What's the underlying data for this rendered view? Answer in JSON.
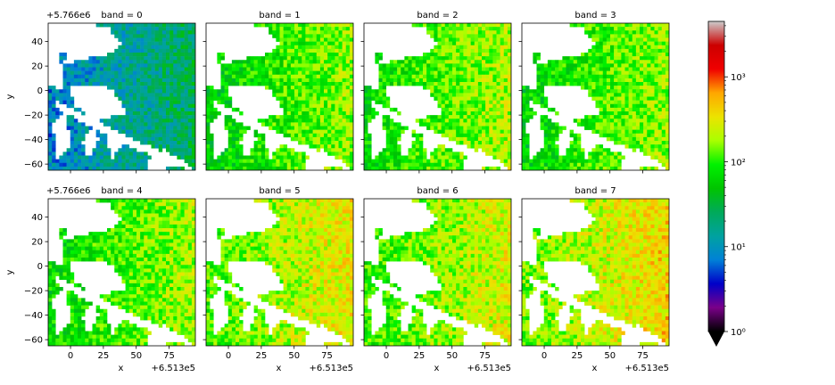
{
  "chart_data": {
    "type": "heatmap",
    "layout": "facet-grid",
    "facet_variable": "band",
    "facet_title_sep": " = ",
    "panels": [
      {
        "band": 0,
        "title": "band = 0",
        "mean_level": 14
      },
      {
        "band": 1,
        "title": "band = 1",
        "mean_level": 95
      },
      {
        "band": 2,
        "title": "band = 2",
        "mean_level": 115
      },
      {
        "band": 3,
        "title": "band = 3",
        "mean_level": 100
      },
      {
        "band": 4,
        "title": "band = 4",
        "mean_level": 110
      },
      {
        "band": 5,
        "title": "band = 5",
        "mean_level": 190
      },
      {
        "band": 6,
        "title": "band = 6",
        "mean_level": 160
      },
      {
        "band": 7,
        "title": "band = 7",
        "mean_level": 230
      }
    ],
    "xlabel": "x",
    "ylabel": "y",
    "x_offset_label": "+6.513e5",
    "y_offset_label": "+5.766e6",
    "x_ticks": [
      0,
      25,
      50,
      75
    ],
    "y_ticks": [
      40,
      20,
      0,
      -20,
      -40,
      -60
    ],
    "y_tick_labels": [
      "40",
      "20",
      "0",
      "−20",
      "−40",
      "−60"
    ],
    "x_tick_labels": [
      "0",
      "25",
      "50",
      "75"
    ],
    "xlim": [
      -17,
      95
    ],
    "ylim": [
      -65,
      55
    ],
    "colorbar": {
      "scale": "log",
      "vmin": 1,
      "vmax": 4500,
      "ticks": [
        1,
        10,
        100,
        1000
      ],
      "tick_labels": [
        "10⁰",
        "10¹",
        "10²",
        "10³"
      ],
      "colormap": "nipy_spectral",
      "extend": "min",
      "color_stops": [
        "#000000",
        "#7a0089",
        "#0000c8",
        "#0081d7",
        "#00a2a0",
        "#00aa5a",
        "#00c400",
        "#00f200",
        "#a9ff00",
        "#ece300",
        "#ffa700",
        "#f00000",
        "#cc0000",
        "#cccccc"
      ]
    }
  }
}
